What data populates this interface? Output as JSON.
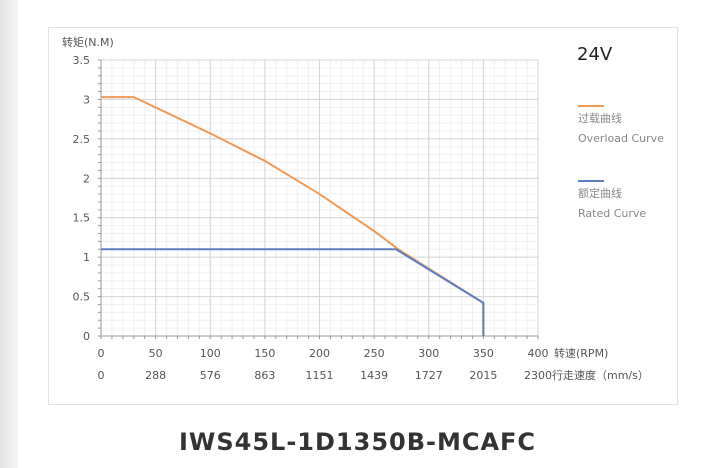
{
  "chart_data": {
    "type": "line",
    "ylabel": "转矩(N.M)",
    "xlabel": "转速(RPM)",
    "x2label": "行走速度（mm/s）",
    "voltage": "24V",
    "xlim": [
      0,
      400
    ],
    "ylim": [
      0,
      3.5
    ],
    "xticks": [
      0,
      50,
      100,
      150,
      200,
      250,
      300,
      350,
      400
    ],
    "x2ticks": [
      "0",
      "288",
      "576",
      "863",
      "1151",
      "1439",
      "1727",
      "2015",
      "2300"
    ],
    "yticks": [
      "0",
      "0.5",
      "1",
      "1.5",
      "2",
      "2.5",
      "3",
      "3.5"
    ],
    "grid": true,
    "legend": "right",
    "series": [
      {
        "name": "过载曲线",
        "name_en": "Overload Curve",
        "color": "#ef9a55",
        "x": [
          0,
          30,
          100,
          150,
          200,
          250,
          272,
          350,
          350
        ],
        "y": [
          3.03,
          3.03,
          2.57,
          2.22,
          1.8,
          1.33,
          1.1,
          0.42,
          0
        ]
      },
      {
        "name": "额定曲线",
        "name_en": "Rated Curve",
        "color": "#5b7fc0",
        "x": [
          0,
          270,
          350,
          350
        ],
        "y": [
          1.1,
          1.1,
          0.42,
          0
        ]
      }
    ]
  },
  "product_title": "IWS45L-1D1350B-MCAFC"
}
